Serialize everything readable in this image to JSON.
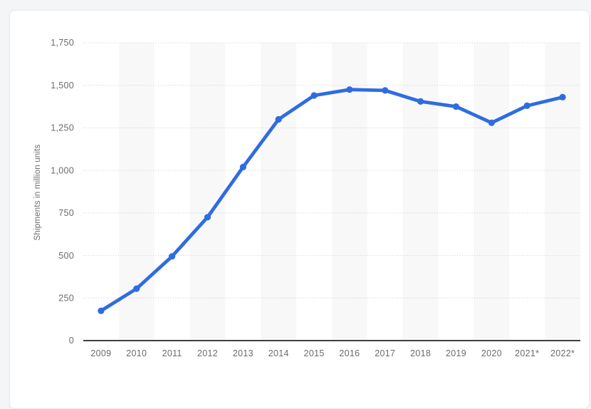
{
  "chart_data": {
    "type": "line",
    "title": "",
    "xlabel": "",
    "ylabel": "Shipments in million units",
    "categories": [
      "2009",
      "2010",
      "2011",
      "2012",
      "2013",
      "2014",
      "2015",
      "2016",
      "2017",
      "2018",
      "2019",
      "2020",
      "2021*",
      "2022*"
    ],
    "values": [
      175,
      305,
      495,
      725,
      1020,
      1300,
      1440,
      1475,
      1470,
      1405,
      1375,
      1280,
      1380,
      1430
    ],
    "ylim": [
      0,
      1750
    ],
    "ytick_interval": 250,
    "ytick_labels": [
      "0",
      "250",
      "500",
      "750",
      "1,000",
      "1,250",
      "1,500",
      "1,750"
    ],
    "grid": "horizontal-dotted",
    "plot_bands": "alternating vertical bands on even years (2010, 2012, 2014, 2016, 2018, 2020, 2022)",
    "legend": "none",
    "colors": {
      "line": "#2e6ce0",
      "marker": "#2e6ce0",
      "band": "#f8f8f9",
      "grid": "#cccccc",
      "axis": "#404040",
      "tick_text": "#6b6b6b",
      "page_background": "#f4f5f7",
      "card_background": "#ffffff",
      "card_border": "#e7e9ed"
    }
  }
}
